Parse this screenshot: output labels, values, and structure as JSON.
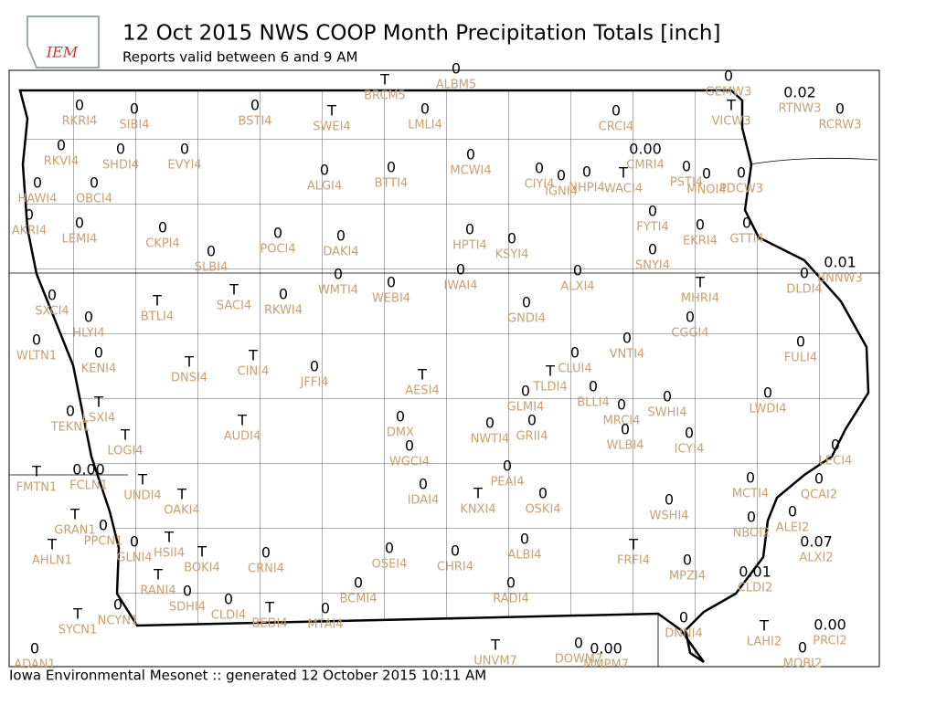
{
  "header": {
    "logo": "IEM",
    "title": "12 Oct 2015 NWS COOP Month Precipitation Totals [inch]",
    "subtitle": "Reports valid between 6 and 9 AM"
  },
  "footer": "Iowa Environmental Mesonet :: generated 12 October 2015 10:11 AM",
  "stations": [
    {
      "value": "T",
      "id": "BRCM5"
    },
    {
      "value": "0",
      "id": "ALBM5"
    },
    {
      "value": "0",
      "id": "GEMW3"
    },
    {
      "value": "0.02",
      "id": "RTNW3"
    },
    {
      "value": "0",
      "id": "RCRW3"
    },
    {
      "value": "T",
      "id": "VICW3"
    },
    {
      "value": "0",
      "id": "RKRI4"
    },
    {
      "value": "0",
      "id": "SIBI4"
    },
    {
      "value": "0",
      "id": "BSTI4"
    },
    {
      "value": "T",
      "id": "SWEI4"
    },
    {
      "value": "0",
      "id": "LMLI4"
    },
    {
      "value": "0",
      "id": "CRCI4"
    },
    {
      "value": "0.00",
      "id": "CMRI4"
    },
    {
      "value": "0",
      "id": "RKVI4"
    },
    {
      "value": "0",
      "id": "SHDI4"
    },
    {
      "value": "0",
      "id": "EVYI4"
    },
    {
      "value": "0",
      "id": "ALGI4"
    },
    {
      "value": "0",
      "id": "BTTI4"
    },
    {
      "value": "0",
      "id": "MCWI4"
    },
    {
      "value": "0",
      "id": "CIYI4"
    },
    {
      "value": "0",
      "id": "IGNI4"
    },
    {
      "value": "0",
      "id": "NHPI4"
    },
    {
      "value": "T",
      "id": "WACI4"
    },
    {
      "value": "0",
      "id": "PSTI4"
    },
    {
      "value": "0",
      "id": "MNOI4"
    },
    {
      "value": "0",
      "id": "PDCW3"
    },
    {
      "value": "0",
      "id": "HAWI4"
    },
    {
      "value": "0",
      "id": "OBCI4"
    },
    {
      "value": "0",
      "id": "AKRI4"
    },
    {
      "value": "0",
      "id": "LEMI4"
    },
    {
      "value": "0",
      "id": "CKPI4"
    },
    {
      "value": "0",
      "id": "POCI4"
    },
    {
      "value": "0",
      "id": "DAKI4"
    },
    {
      "value": "0",
      "id": "HPTI4"
    },
    {
      "value": "0",
      "id": "KSYI4"
    },
    {
      "value": "0",
      "id": "FYTI4"
    },
    {
      "value": "0",
      "id": "EKRI4"
    },
    {
      "value": "0",
      "id": "GTTI4"
    },
    {
      "value": "0",
      "id": "SLBI4"
    },
    {
      "value": "0",
      "id": "SNYI4"
    },
    {
      "value": "0",
      "id": "WMTI4"
    },
    {
      "value": "0",
      "id": "WEBI4"
    },
    {
      "value": "0",
      "id": "IWAI4"
    },
    {
      "value": "0",
      "id": "ALXI4"
    },
    {
      "value": "0.01",
      "id": "BNNW3"
    },
    {
      "value": "0",
      "id": "DLDI4"
    },
    {
      "value": "T",
      "id": "MHRI4"
    },
    {
      "value": "0",
      "id": "SXCI4"
    },
    {
      "value": "T",
      "id": "BTLI4"
    },
    {
      "value": "T",
      "id": "SACI4"
    },
    {
      "value": "0",
      "id": "RKWI4"
    },
    {
      "value": "0",
      "id": "GNDI4"
    },
    {
      "value": "0",
      "id": "HLYI4"
    },
    {
      "value": "0",
      "id": "CGGI4"
    },
    {
      "value": "0",
      "id": "WLTN1"
    },
    {
      "value": "0",
      "id": "KENI4"
    },
    {
      "value": "T",
      "id": "DNSI4"
    },
    {
      "value": "T",
      "id": "CINI4"
    },
    {
      "value": "0",
      "id": "JFFI4"
    },
    {
      "value": "0",
      "id": "VNTI4"
    },
    {
      "value": "0",
      "id": "CLUI4"
    },
    {
      "value": "0",
      "id": "FULI4"
    },
    {
      "value": "T",
      "id": "TLDI4"
    },
    {
      "value": "T",
      "id": "AESI4"
    },
    {
      "value": "0",
      "id": "BLLI4"
    },
    {
      "value": "0",
      "id": "SWHI4"
    },
    {
      "value": "0",
      "id": "LWDI4"
    },
    {
      "value": "0",
      "id": "GLMI4"
    },
    {
      "value": "0",
      "id": "MRCI4"
    },
    {
      "value": "T",
      "id": "LSXI4"
    },
    {
      "value": "0",
      "id": "TEKN1"
    },
    {
      "value": "T",
      "id": "AUDI4"
    },
    {
      "value": "T",
      "id": "LOGI4"
    },
    {
      "value": "0",
      "id": "DMX"
    },
    {
      "value": "0",
      "id": "WGCI4"
    },
    {
      "value": "0",
      "id": "NWTI4"
    },
    {
      "value": "0",
      "id": "GRII4"
    },
    {
      "value": "0",
      "id": "WLBI4"
    },
    {
      "value": "0",
      "id": "ICYI4"
    },
    {
      "value": "0",
      "id": "LECI4"
    },
    {
      "value": "T",
      "id": "FMTN1"
    },
    {
      "value": "0.00",
      "id": "FCLN1"
    },
    {
      "value": "T",
      "id": "UNDI4"
    },
    {
      "value": "T",
      "id": "OAKI4"
    },
    {
      "value": "0",
      "id": "PEAI4"
    },
    {
      "value": "0",
      "id": "IDAI4"
    },
    {
      "value": "T",
      "id": "KNXI4"
    },
    {
      "value": "0",
      "id": "OSKI4"
    },
    {
      "value": "0",
      "id": "WSHI4"
    },
    {
      "value": "0",
      "id": "MCTI4"
    },
    {
      "value": "0",
      "id": "QCAI2"
    },
    {
      "value": "0",
      "id": "ALEI2"
    },
    {
      "value": "0",
      "id": "NBOI2"
    },
    {
      "value": "T",
      "id": "GRAN1"
    },
    {
      "value": "0",
      "id": "PPCN1"
    },
    {
      "value": "T",
      "id": "AHLN1"
    },
    {
      "value": "0",
      "id": "GLNI4"
    },
    {
      "value": "T",
      "id": "HSII4"
    },
    {
      "value": "T",
      "id": "BOKI4"
    },
    {
      "value": "0",
      "id": "CRNI4"
    },
    {
      "value": "0",
      "id": "OSEI4"
    },
    {
      "value": "0",
      "id": "CHRI4"
    },
    {
      "value": "0",
      "id": "ALBI4"
    },
    {
      "value": "T",
      "id": "FRFI4"
    },
    {
      "value": "0",
      "id": "MPZI4"
    },
    {
      "value": "0.07",
      "id": "ALXI2"
    },
    {
      "value": "0.01",
      "id": "CLDI2"
    },
    {
      "value": "T",
      "id": "RANI4"
    },
    {
      "value": "0",
      "id": "BCMI4"
    },
    {
      "value": "0",
      "id": "RADI4"
    },
    {
      "value": "0",
      "id": "SDHI4"
    },
    {
      "value": "0",
      "id": "CLDI4"
    },
    {
      "value": "T",
      "id": "BEDI4"
    },
    {
      "value": "0",
      "id": "MTAI4"
    },
    {
      "value": "T",
      "id": "SYCN1"
    },
    {
      "value": "0",
      "id": "NCYN1"
    },
    {
      "value": "0",
      "id": "DNNI4"
    },
    {
      "value": "T",
      "id": "LAHI2"
    },
    {
      "value": "0.00",
      "id": "PRCI2"
    },
    {
      "value": "0",
      "id": "ADAN1"
    },
    {
      "value": "0",
      "id": "MOBI2"
    },
    {
      "value": "0",
      "id": "DOWM7"
    },
    {
      "value": "0.00",
      "id": "MMPM7"
    },
    {
      "value": "T",
      "id": "UNVM7"
    }
  ]
}
